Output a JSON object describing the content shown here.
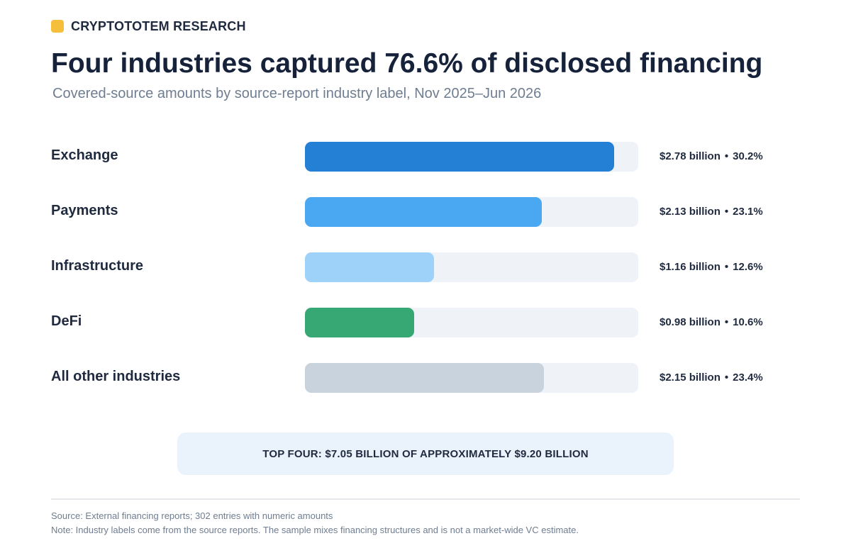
{
  "brand": {
    "name": "CRYPTOTOTEM RESEARCH",
    "accent": "#f6bf3b"
  },
  "header": {
    "title": "Four industries captured 76.6% of disclosed financing",
    "subtitle": "Covered-source amounts by source-report industry label, Nov 2025–Jun 2026"
  },
  "chart_data": {
    "type": "bar",
    "orientation": "horizontal",
    "categories": [
      "Exchange",
      "Payments",
      "Infrastructure",
      "DeFi",
      "All other industries"
    ],
    "values": [
      2.78,
      2.13,
      1.16,
      0.98,
      2.15
    ],
    "value_labels": [
      "$2.78 billion",
      "$2.13 billion",
      "$1.16 billion",
      "$0.98 billion",
      "$2.15 billion"
    ],
    "share_labels": [
      "30.2%",
      "23.1%",
      "12.6%",
      "10.6%",
      "23.4%"
    ],
    "value_unit": "$ billion",
    "xlim": [
      0,
      3.0
    ],
    "colors": [
      "#2480d4",
      "#4aa8f3",
      "#9ed2f8",
      "#37a874",
      "#c8d3dd"
    ],
    "track_color": "#eff2f6",
    "separator": "•",
    "grid": false
  },
  "callout": {
    "text": "TOP FOUR: $7.05 BILLION OF APPROXIMATELY $9.20 BILLION"
  },
  "footer": {
    "source": "Source: External financing reports; 302 entries with numeric amounts",
    "note": "Note: Industry labels come from the source reports. The sample mixes financing structures and is not a market-wide VC estimate."
  }
}
